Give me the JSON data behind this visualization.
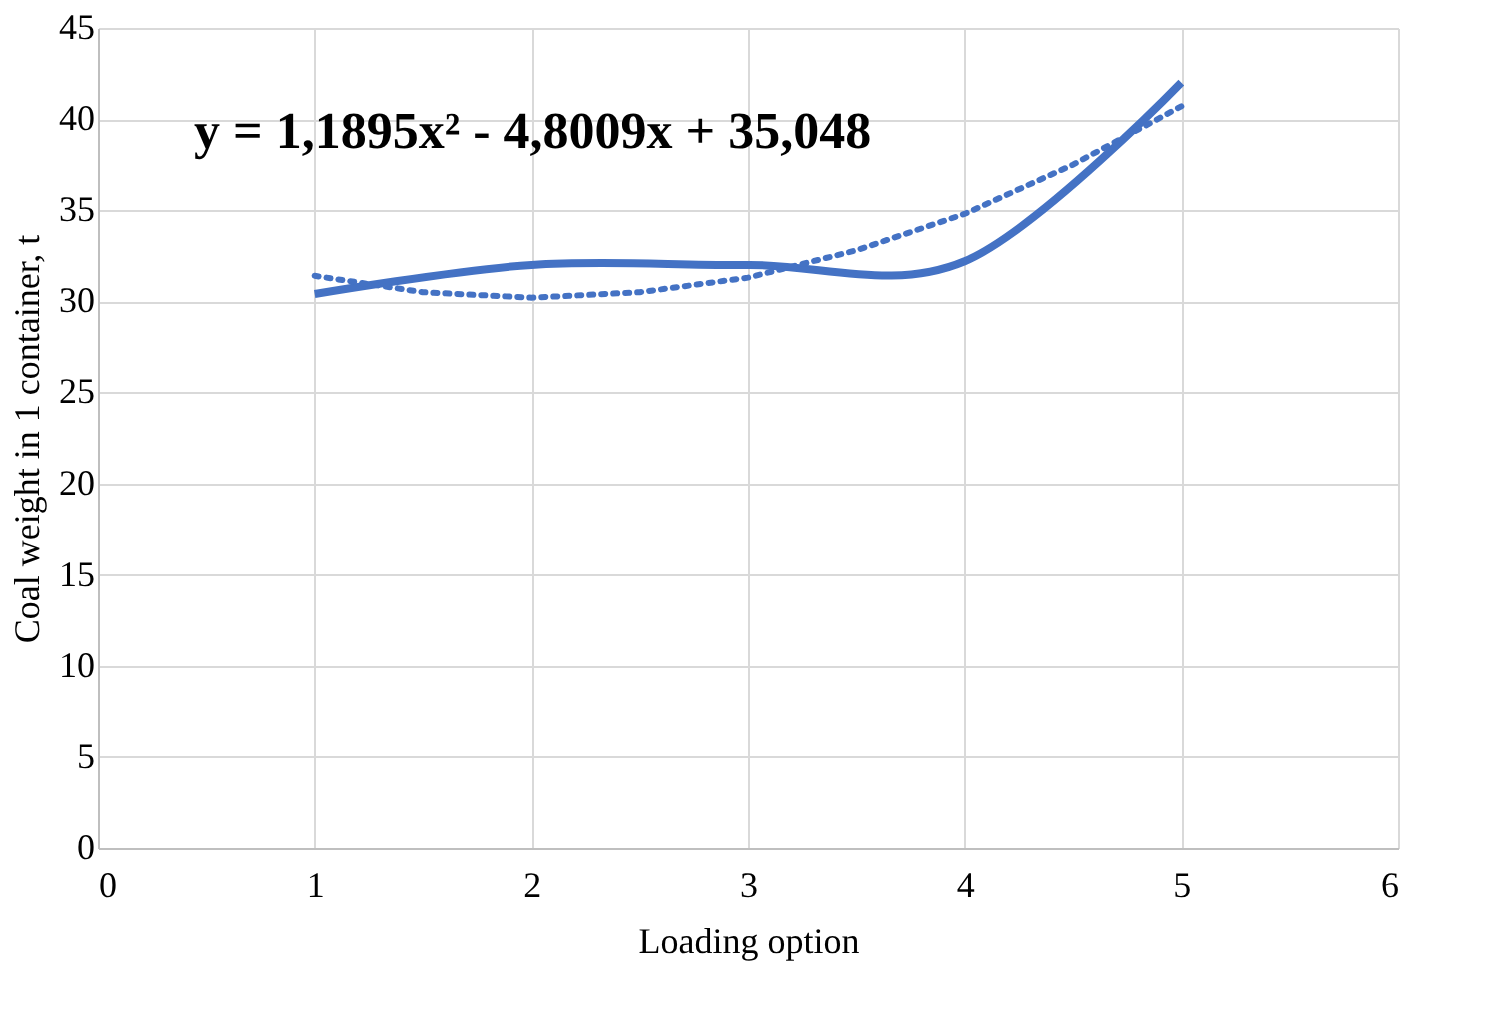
{
  "chart_data": {
    "type": "line",
    "xlabel": "Loading option",
    "ylabel": "Coal weight in 1 container, t",
    "xlim": [
      0,
      6
    ],
    "xticks": [
      0,
      1,
      2,
      3,
      4,
      5,
      6
    ],
    "ylim": [
      0,
      45
    ],
    "yticks": [
      0,
      5,
      10,
      15,
      20,
      25,
      30,
      35,
      40,
      45
    ],
    "grid": true,
    "marker": "none",
    "series": [
      {
        "color": "#4472c4",
        "line_style": "solid",
        "x": [
          1,
          2,
          3,
          4,
          5
        ],
        "values": [
          30.4,
          32,
          32,
          32.2,
          42
        ]
      },
      {
        "color": "#4472c4",
        "line_style": "dotted",
        "x": [
          1,
          1.5,
          2,
          2.5,
          3,
          3.5,
          4,
          4.5,
          5
        ],
        "values": [
          31.4,
          30.5,
          30.2,
          30.5,
          31.3,
          32.8,
          34.8,
          37.5,
          40.7
        ]
      }
    ],
    "annotations": [
      "y = 1,1895x² - 4,8009x + 35,048"
    ]
  }
}
